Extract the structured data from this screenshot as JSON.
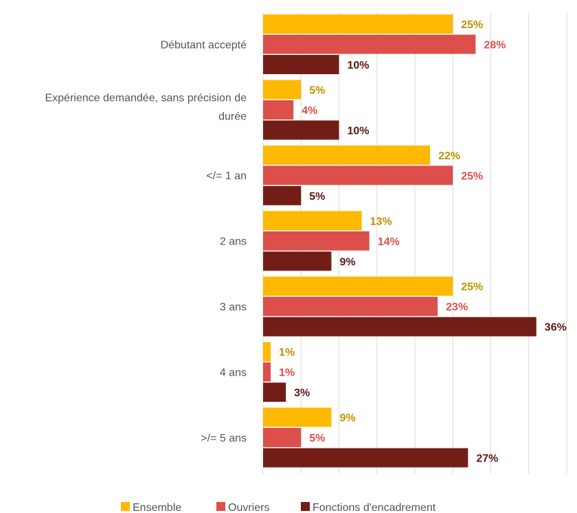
{
  "chart_data": {
    "type": "bar",
    "orientation": "horizontal",
    "title": "",
    "xlabel": "",
    "ylabel": "",
    "xlim": [
      0,
      0.36
    ],
    "grid": true,
    "legend_position": "bottom",
    "categories": [
      [
        "Débutant accepté"
      ],
      [
        "Expérience demandée, sans précision de",
        "durée"
      ],
      [
        "</= 1 an"
      ],
      [
        "2 ans"
      ],
      [
        "3 ans"
      ],
      [
        "4 ans"
      ],
      [
        ">/= 5 ans"
      ]
    ],
    "series": [
      {
        "name": "Ensemble",
        "color": "#FFB900",
        "label_color": "#C09000",
        "values": [
          0.25,
          0.05,
          0.22,
          0.13,
          0.25,
          0.01,
          0.09
        ],
        "labels": [
          "25%",
          "5%",
          "22%",
          "13%",
          "25%",
          "1%",
          "9%"
        ]
      },
      {
        "name": "Ouvriers",
        "color": "#DC4F4B",
        "label_color": "#DC4F4B",
        "values": [
          0.28,
          0.04,
          0.25,
          0.14,
          0.23,
          0.01,
          0.05
        ],
        "labels": [
          "28%",
          "4%",
          "25%",
          "14%",
          "23%",
          "1%",
          "5%"
        ]
      },
      {
        "name": "Fonctions d'encadrement",
        "color": "#721E17",
        "label_color": "#5A1712",
        "values": [
          0.1,
          0.1,
          0.05,
          0.09,
          0.36,
          0.03,
          0.27
        ],
        "labels": [
          "10%",
          "10%",
          "5%",
          "9%",
          "36%",
          "3%",
          "27%"
        ]
      }
    ]
  }
}
